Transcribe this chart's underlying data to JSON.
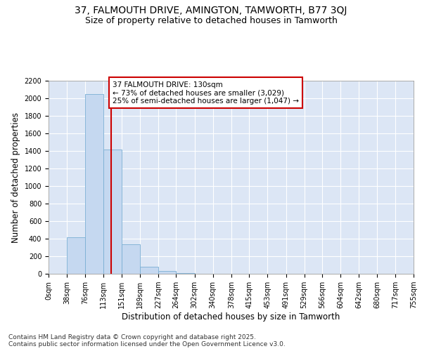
{
  "title_line1": "37, FALMOUTH DRIVE, AMINGTON, TAMWORTH, B77 3QJ",
  "title_line2": "Size of property relative to detached houses in Tamworth",
  "xlabel": "Distribution of detached houses by size in Tamworth",
  "ylabel": "Number of detached properties",
  "bin_edges": [
    0,
    38,
    76,
    113,
    151,
    189,
    227,
    264,
    302,
    340,
    378,
    415,
    453,
    491,
    529,
    566,
    604,
    642,
    680,
    717,
    755
  ],
  "bar_heights": [
    3,
    420,
    2050,
    1420,
    340,
    80,
    30,
    10,
    0,
    0,
    0,
    0,
    0,
    0,
    0,
    0,
    0,
    0,
    0,
    0
  ],
  "bar_color": "#c5d8f0",
  "bar_edge_color": "#7aafd4",
  "background_color": "#dce6f5",
  "grid_color": "#ffffff",
  "vline_x": 130,
  "vline_color": "#cc0000",
  "annotation_text": "37 FALMOUTH DRIVE: 130sqm\n← 73% of detached houses are smaller (3,029)\n25% of semi-detached houses are larger (1,047) →",
  "annotation_box_color": "#ffffff",
  "annotation_box_edge_color": "#cc0000",
  "ylim": [
    0,
    2200
  ],
  "yticks": [
    0,
    200,
    400,
    600,
    800,
    1000,
    1200,
    1400,
    1600,
    1800,
    2000,
    2200
  ],
  "tick_labels": [
    "0sqm",
    "38sqm",
    "76sqm",
    "113sqm",
    "151sqm",
    "189sqm",
    "227sqm",
    "264sqm",
    "302sqm",
    "340sqm",
    "378sqm",
    "415sqm",
    "453sqm",
    "491sqm",
    "529sqm",
    "566sqm",
    "604sqm",
    "642sqm",
    "680sqm",
    "717sqm",
    "755sqm"
  ],
  "footer_text": "Contains HM Land Registry data © Crown copyright and database right 2025.\nContains public sector information licensed under the Open Government Licence v3.0.",
  "title_fontsize": 10,
  "subtitle_fontsize": 9,
  "axis_label_fontsize": 8.5,
  "tick_fontsize": 7,
  "annotation_fontsize": 7.5,
  "footer_fontsize": 6.5
}
